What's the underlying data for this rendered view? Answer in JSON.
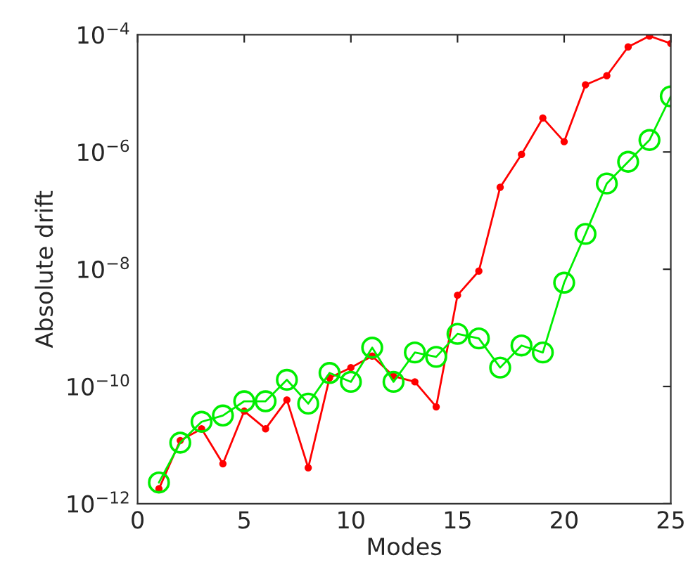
{
  "chart_data": {
    "type": "line",
    "xlabel": "Modes",
    "ylabel": "Absolute drift",
    "log": "y",
    "grid": false,
    "legend": false,
    "x": [
      1,
      2,
      3,
      4,
      5,
      6,
      7,
      8,
      9,
      10,
      11,
      12,
      13,
      14,
      15,
      16,
      17,
      18,
      19,
      20,
      21,
      22,
      23,
      24,
      25
    ],
    "xlim": [
      0,
      25
    ],
    "xticks": [
      0,
      5,
      10,
      15,
      20,
      25
    ],
    "ylim": [
      1e-12,
      0.0001
    ],
    "yticks": [
      {
        "value": 1e-12,
        "label": "10$^{−12}$"
      },
      {
        "value": 1e-10,
        "label": "10$^{−10}$"
      },
      {
        "value": 1e-08,
        "label": "10$^{−8}$"
      },
      {
        "value": 1e-06,
        "label": "10$^{−6}$"
      },
      {
        "value": 0.0001,
        "label": "10$^{−4}$"
      }
    ],
    "series": [
      {
        "color": "#ff0000",
        "marker": "circle",
        "values": [
          1.8e-12,
          1.2e-11,
          1.9e-11,
          4.8e-12,
          3.8e-11,
          1.9e-11,
          5.9e-11,
          4.1e-12,
          1.4e-10,
          2.1e-10,
          3.3e-10,
          1.5e-10,
          1.2e-10,
          4.5e-11,
          3.6e-09,
          9.3e-09,
          2.5e-07,
          9.1e-07,
          3.8e-06,
          1.5e-06,
          1.4e-05,
          2e-05,
          6.2e-05,
          9.5e-05,
          7.1e-05
        ]
      },
      {
        "color": "#00ee00",
        "marker": "open circle",
        "values": [
          2.3e-12,
          1.1e-11,
          2.5e-11,
          3.2e-11,
          5.6e-11,
          5.6e-11,
          1.3e-10,
          5.1e-11,
          1.7e-10,
          1.2e-10,
          4.6e-10,
          1.2e-10,
          3.8e-10,
          3.2e-10,
          7.9e-10,
          6.6e-10,
          2.1e-10,
          5e-10,
          3.8e-10,
          5.9e-09,
          4e-08,
          2.9e-07,
          6.8e-07,
          1.6e-06,
          8.9e-06
        ]
      }
    ]
  }
}
